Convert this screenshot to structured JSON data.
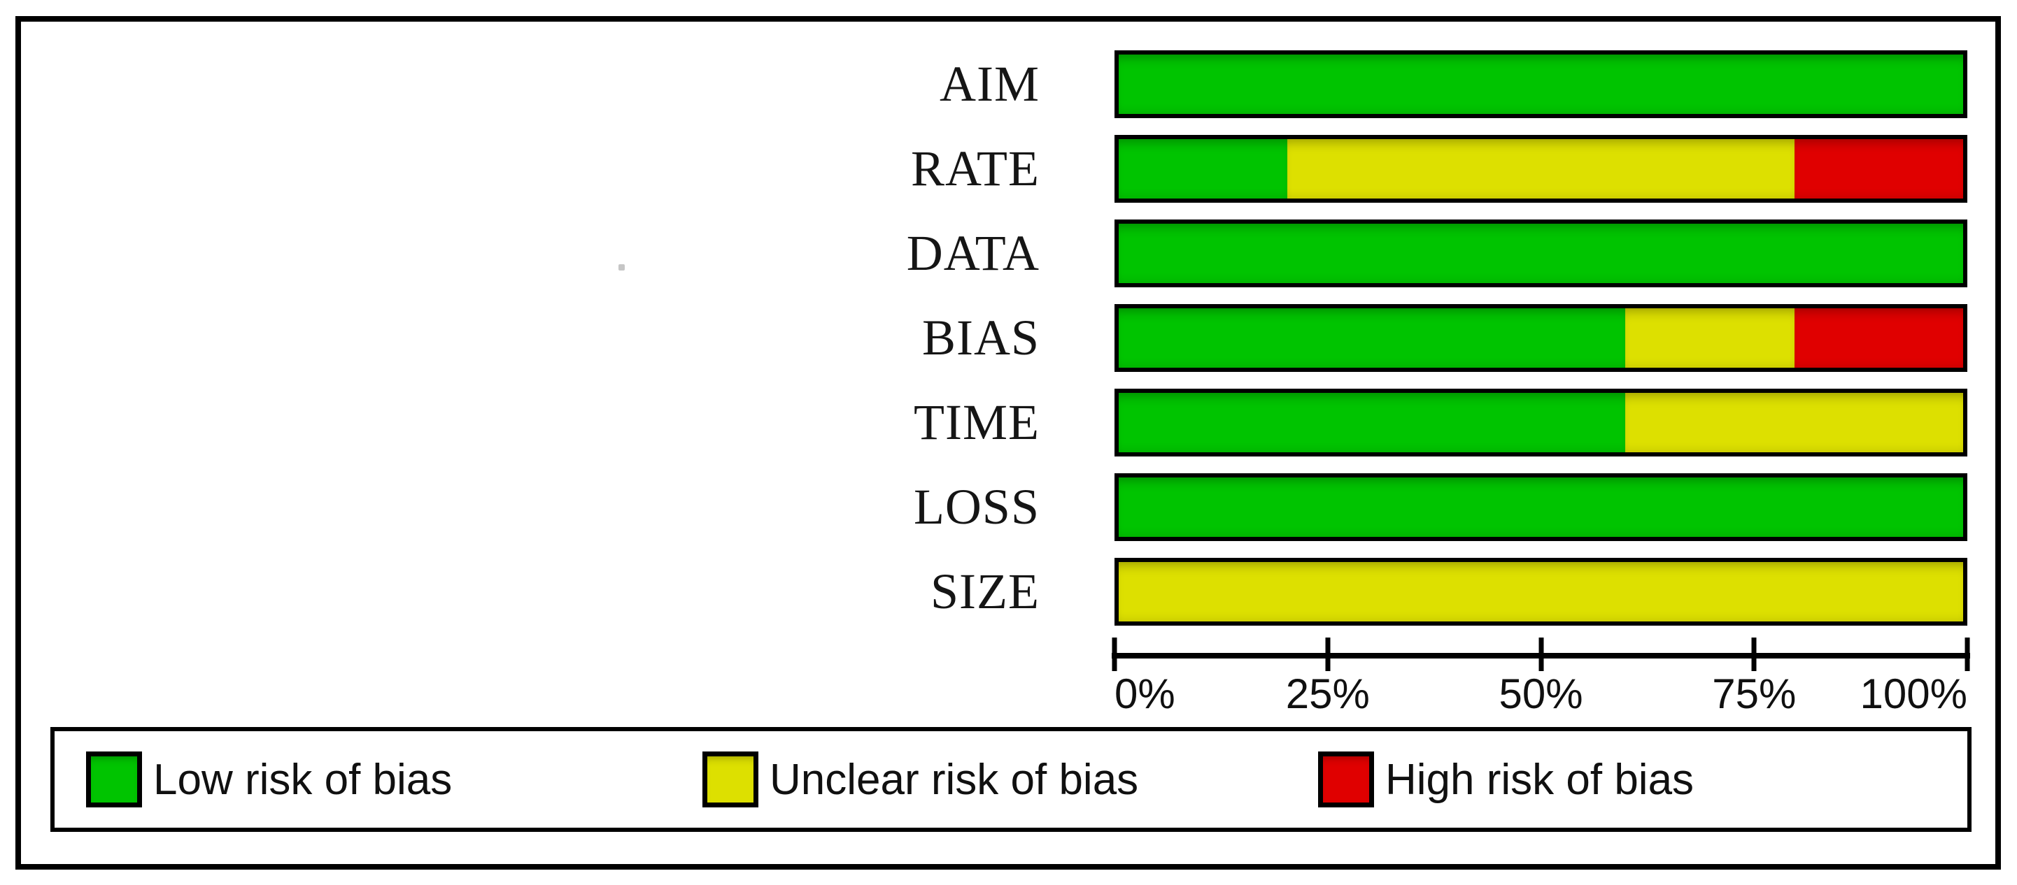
{
  "chart_data": {
    "type": "bar",
    "orientation": "horizontal",
    "stacked": true,
    "categories": [
      "AIM",
      "RATE",
      "DATA",
      "BIAS",
      "TIME",
      "LOSS",
      "SIZE"
    ],
    "series": [
      {
        "name": "Low risk of bias",
        "color": "#00c400",
        "values": [
          100,
          20,
          100,
          60,
          60,
          100,
          0
        ]
      },
      {
        "name": "Unclear risk of bias",
        "color": "#dde000",
        "values": [
          0,
          60,
          0,
          20,
          40,
          0,
          100
        ]
      },
      {
        "name": "High risk of bias",
        "color": "#e00000",
        "values": [
          0,
          20,
          0,
          20,
          0,
          0,
          0
        ]
      }
    ],
    "xlim": [
      0,
      100
    ],
    "x_ticks": [
      "0%",
      "25%",
      "50%",
      "75%",
      "100%"
    ],
    "grid": false,
    "legend_position": "bottom"
  },
  "legend": {
    "items": [
      {
        "label": "Low risk of bias",
        "color": "#00c400"
      },
      {
        "label": "Unclear risk of bias",
        "color": "#dde000"
      },
      {
        "label": "High risk of bias",
        "color": "#e00000"
      }
    ]
  }
}
